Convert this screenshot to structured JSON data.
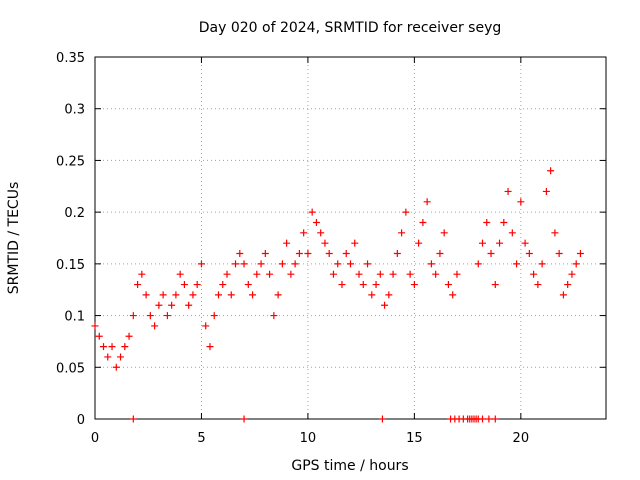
{
  "chart_data": {
    "type": "scatter",
    "title": "Day 020 of 2024, SRMTID for receiver seyg",
    "xlabel": "GPS time / hours",
    "ylabel": "SRMTID / TECUs",
    "xlim": [
      0,
      24
    ],
    "ylim": [
      0,
      0.35
    ],
    "xticks": [
      0,
      5,
      10,
      15,
      20
    ],
    "xtick_labels": [
      "0",
      "5",
      "10",
      "15",
      "20"
    ],
    "yticks": [
      0,
      0.05,
      0.1,
      0.15,
      0.2,
      0.25,
      0.3,
      0.35
    ],
    "ytick_labels": [
      "0",
      "0.05",
      "0.1",
      "0.15",
      "0.2",
      "0.25",
      "0.3",
      "0.35"
    ],
    "grid": true,
    "marker": "plus",
    "color": "#ff0000",
    "series": [
      {
        "name": "SRMTID",
        "x": [
          0.0,
          0.2,
          0.4,
          0.6,
          0.8,
          1.0,
          1.2,
          1.4,
          1.6,
          1.8,
          2.0,
          2.2,
          2.4,
          2.6,
          2.8,
          3.0,
          3.2,
          3.4,
          3.6,
          3.8,
          4.0,
          4.2,
          4.4,
          4.6,
          4.8,
          5.0,
          5.2,
          5.4,
          5.6,
          5.8,
          6.0,
          6.2,
          6.4,
          6.6,
          6.8,
          7.0,
          7.2,
          7.4,
          7.6,
          7.8,
          8.0,
          8.2,
          8.4,
          8.6,
          8.8,
          9.0,
          9.2,
          9.4,
          9.6,
          9.8,
          10.0,
          10.2,
          10.4,
          10.6,
          10.8,
          11.0,
          11.2,
          11.4,
          11.6,
          11.8,
          12.0,
          12.2,
          12.4,
          12.6,
          12.8,
          13.0,
          13.2,
          13.4,
          13.6,
          13.8,
          14.0,
          14.2,
          14.4,
          14.6,
          14.8,
          15.0,
          15.2,
          15.4,
          15.6,
          15.8,
          16.0,
          16.2,
          16.4,
          16.6,
          16.8,
          17.0,
          18.0,
          18.2,
          18.4,
          18.6,
          18.8,
          19.0,
          19.2,
          19.4,
          19.6,
          19.8,
          20.0,
          20.2,
          20.4,
          20.6,
          20.8,
          21.0,
          21.2,
          21.4,
          21.6,
          21.8,
          22.0,
          22.2,
          22.4,
          22.6,
          22.8
        ],
        "y": [
          0.09,
          0.08,
          0.07,
          0.06,
          0.07,
          0.05,
          0.06,
          0.07,
          0.08,
          0.1,
          0.13,
          0.14,
          0.12,
          0.1,
          0.09,
          0.11,
          0.12,
          0.1,
          0.11,
          0.12,
          0.14,
          0.13,
          0.11,
          0.12,
          0.13,
          0.15,
          0.09,
          0.07,
          0.1,
          0.12,
          0.13,
          0.14,
          0.12,
          0.15,
          0.16,
          0.15,
          0.13,
          0.12,
          0.14,
          0.15,
          0.16,
          0.14,
          0.1,
          0.12,
          0.15,
          0.17,
          0.14,
          0.15,
          0.16,
          0.18,
          0.16,
          0.2,
          0.19,
          0.18,
          0.17,
          0.16,
          0.14,
          0.15,
          0.13,
          0.16,
          0.15,
          0.17,
          0.14,
          0.13,
          0.15,
          0.12,
          0.13,
          0.14,
          0.11,
          0.12,
          0.14,
          0.16,
          0.18,
          0.2,
          0.14,
          0.13,
          0.17,
          0.19,
          0.21,
          0.15,
          0.14,
          0.16,
          0.18,
          0.13,
          0.12,
          0.14,
          0.15,
          0.17,
          0.19,
          0.16,
          0.13,
          0.17,
          0.19,
          0.22,
          0.18,
          0.15,
          0.21,
          0.17,
          0.16,
          0.14,
          0.13,
          0.15,
          0.22,
          0.24,
          0.18,
          0.16,
          0.12,
          0.13,
          0.14,
          0.15,
          0.16
        ]
      },
      {
        "name": "zero-level markers",
        "x": [
          1.8,
          7.0,
          13.5,
          16.7,
          16.9,
          17.1,
          17.3,
          17.5,
          17.6,
          17.7,
          17.8,
          17.9,
          18.0,
          18.2,
          18.5,
          18.8
        ],
        "y": [
          0,
          0,
          0,
          0,
          0,
          0,
          0,
          0,
          0,
          0,
          0,
          0,
          0,
          0,
          0,
          0
        ]
      }
    ]
  }
}
